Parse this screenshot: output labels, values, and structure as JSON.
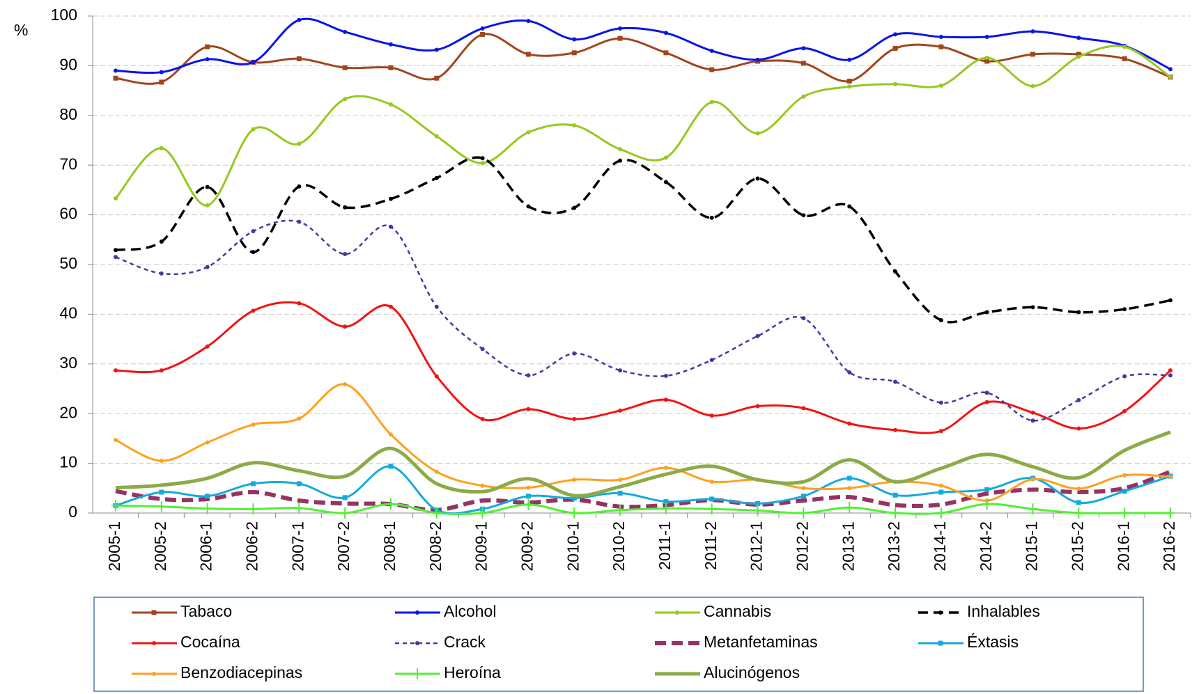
{
  "chart_data": {
    "type": "line",
    "y_label": "%",
    "categories": [
      "2005-1",
      "2005-2",
      "2006-1",
      "2006-2",
      "2007-1",
      "2007-2",
      "2008-1",
      "2008-2",
      "2009-1",
      "2009-2",
      "2010-1",
      "2010-2",
      "2011-1",
      "2011-2",
      "2012-1",
      "2012-2",
      "2013-1",
      "2013-2",
      "2014-1",
      "2014-2",
      "2015-1",
      "2015-2",
      "2016-1",
      "2016-2"
    ],
    "ylim": [
      0,
      100
    ],
    "yticks": [
      0,
      10,
      20,
      30,
      40,
      50,
      60,
      70,
      80,
      90,
      100
    ],
    "grid": true,
    "smooth": true,
    "series": [
      {
        "name": "Tabaco",
        "color": "#a0461e",
        "marker": "square",
        "dash": "none",
        "values": [
          87.5,
          86.7,
          93.8,
          90.7,
          91.4,
          89.6,
          89.6,
          87.5,
          96.3,
          92.3,
          92.6,
          95.5,
          92.6,
          89.2,
          90.9,
          90.5,
          86.9,
          93.5,
          93.8,
          90.9,
          92.3,
          92.3,
          91.4,
          87.7
        ]
      },
      {
        "name": "Alcohol",
        "color": "#0a14e6",
        "marker": "dot",
        "dash": "none",
        "values": [
          89,
          88.7,
          91.3,
          90.7,
          99.2,
          96.8,
          94.3,
          93.2,
          97.5,
          99,
          95.3,
          97.5,
          96.6,
          93,
          91.2,
          93.5,
          91.2,
          96.3,
          95.8,
          95.8,
          96.9,
          95.6,
          94,
          89.3
        ]
      },
      {
        "name": "Cannabis",
        "color": "#96c81e",
        "marker": "dot",
        "dash": "none",
        "values": [
          63.3,
          73.4,
          61.9,
          77.2,
          74.3,
          83.3,
          82.2,
          75.8,
          70.4,
          76.6,
          78,
          73.2,
          71.5,
          82.7,
          76.4,
          83.8,
          85.8,
          86.3,
          86,
          91.6,
          85.9,
          91.8,
          93.8,
          87.7
        ]
      },
      {
        "name": "Inhalables",
        "color": "#000000",
        "marker": "dot",
        "dash": "long",
        "values": [
          52.9,
          54.6,
          65.6,
          52.5,
          65.7,
          61.5,
          63.2,
          67.4,
          71.4,
          61.7,
          61.4,
          70.9,
          66.6,
          59.4,
          67.3,
          59.9,
          61.7,
          48.6,
          38.8,
          40.4,
          41.4,
          40.4,
          41,
          42.8
        ]
      },
      {
        "name": "Cocaína",
        "color": "#f01414",
        "marker": "dot",
        "dash": "none",
        "values": [
          28.7,
          28.7,
          33.5,
          40.7,
          42.2,
          37.5,
          41.5,
          27.5,
          18.9,
          20.9,
          18.9,
          20.6,
          22.8,
          19.6,
          21.5,
          21.1,
          18,
          16.7,
          16.5,
          22.3,
          20.2,
          17,
          20.5,
          28.7
        ]
      },
      {
        "name": "Crack",
        "color": "#3c3ca0",
        "marker": "dot",
        "dash": "short",
        "values": [
          51.5,
          48.2,
          49.5,
          56.7,
          58.6,
          52.1,
          57.6,
          41.5,
          33,
          27.7,
          32.1,
          28.7,
          27.6,
          30.8,
          35.6,
          39.2,
          28.3,
          26.4,
          22.2,
          24.2,
          18.6,
          22.7,
          27.5,
          27.7
        ]
      },
      {
        "name": "Metanfetaminas",
        "color": "#963264",
        "marker": "none",
        "dash": "bold",
        "values": [
          4.4,
          2.8,
          2.8,
          4.2,
          2.5,
          1.9,
          1.8,
          0.6,
          2.5,
          2.1,
          2.7,
          1.3,
          1.6,
          2.6,
          1.7,
          2.5,
          3.2,
          1.6,
          1.7,
          3.9,
          4.7,
          4.2,
          5,
          8.3
        ]
      },
      {
        "name": "Éxtasis",
        "color": "#14aadc",
        "marker": "square",
        "dash": "none",
        "values": [
          1.5,
          4.2,
          3.4,
          5.9,
          5.9,
          3.1,
          9.4,
          0.6,
          0.8,
          3.4,
          3,
          4,
          2.3,
          2.8,
          1.9,
          3.4,
          7,
          3.6,
          4.2,
          4.7,
          7,
          2.1,
          4.4,
          7.4
        ]
      },
      {
        "name": "Benzodiacepinas",
        "color": "#ffa01e",
        "marker": "dot",
        "dash": "none",
        "values": [
          14.7,
          10.5,
          14.2,
          17.8,
          19,
          25.9,
          15.8,
          8.3,
          5.5,
          5.1,
          6.7,
          6.7,
          9.1,
          6.3,
          6.7,
          5,
          5,
          6.3,
          5.5,
          2.5,
          6.8,
          4.9,
          7.6,
          7.3
        ]
      },
      {
        "name": "Heroína",
        "color": "#50f032",
        "marker": "plus",
        "dash": "none",
        "values": [
          1.5,
          1.3,
          0.9,
          0.8,
          1,
          0,
          1.8,
          0,
          0,
          1.7,
          0,
          0.6,
          0.9,
          0.8,
          0.5,
          0,
          1.1,
          0,
          0,
          1.8,
          0.8,
          0,
          0,
          0
        ]
      },
      {
        "name": "Alucinógenos",
        "color": "#8caa46",
        "marker": "none",
        "dash": "thick",
        "values": [
          5.1,
          5.6,
          7,
          10.1,
          8.5,
          7.4,
          13,
          5.9,
          4.3,
          6.9,
          3.5,
          5.3,
          7.8,
          9.4,
          6.7,
          6.3,
          10.7,
          6.3,
          9,
          11.8,
          9.3,
          7.1,
          12.6,
          16.3
        ]
      }
    ]
  }
}
